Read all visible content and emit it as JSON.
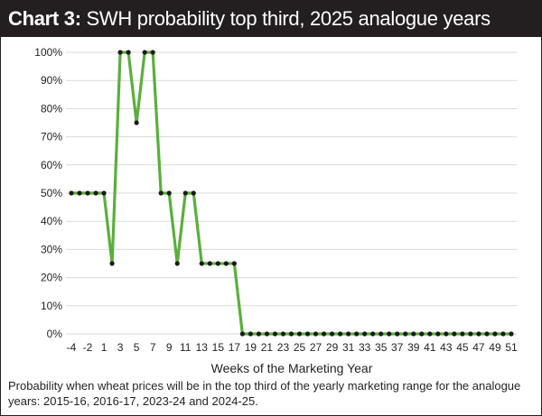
{
  "header": {
    "label": "Chart 3:",
    "title": "SWH probability top third, 2025 analogue years"
  },
  "caption": "Probability when wheat prices will be in the top third of the yearly marketing range for the analogue years: 2015-16, 2016-17, 2023-24 and 2024-25.",
  "colors": {
    "line": "#5aaf3c",
    "marker": "#1a1a1a",
    "grid": "#d9d9d9",
    "header_bg": "#231f20"
  },
  "chart_data": {
    "type": "line",
    "title": "SWH probability top third, 2025 analogue years",
    "xlabel": "Weeks of the Marketing Year",
    "ylabel": "",
    "ylim": [
      0,
      100
    ],
    "yticks": [
      "0%",
      "10%",
      "20%",
      "30%",
      "40%",
      "50%",
      "60%",
      "70%",
      "80%",
      "90%",
      "100%"
    ],
    "xticks": [
      "-4",
      "-2",
      "1",
      "3",
      "5",
      "7",
      "9",
      "11",
      "13",
      "15",
      "17",
      "19",
      "21",
      "23",
      "25",
      "27",
      "29",
      "31",
      "33",
      "35",
      "37",
      "39",
      "41",
      "43",
      "45",
      "47",
      "49",
      "51"
    ],
    "grid": "horizontal",
    "x": [
      -4,
      -3,
      -2,
      -1,
      1,
      2,
      3,
      4,
      5,
      6,
      7,
      8,
      9,
      10,
      11,
      12,
      13,
      14,
      15,
      16,
      17,
      18,
      19,
      20,
      21,
      22,
      23,
      24,
      25,
      26,
      27,
      28,
      29,
      30,
      31,
      32,
      33,
      34,
      35,
      36,
      37,
      38,
      39,
      40,
      41,
      42,
      43,
      44,
      45,
      46,
      47,
      48,
      49,
      50,
      51
    ],
    "values": [
      50,
      50,
      50,
      50,
      50,
      25,
      100,
      100,
      75,
      100,
      100,
      50,
      50,
      25,
      50,
      50,
      25,
      25,
      25,
      25,
      25,
      0,
      0,
      0,
      0,
      0,
      0,
      0,
      0,
      0,
      0,
      0,
      0,
      0,
      0,
      0,
      0,
      0,
      0,
      0,
      0,
      0,
      0,
      0,
      0,
      0,
      0,
      0,
      0,
      0,
      0,
      0,
      0,
      0,
      0
    ]
  }
}
